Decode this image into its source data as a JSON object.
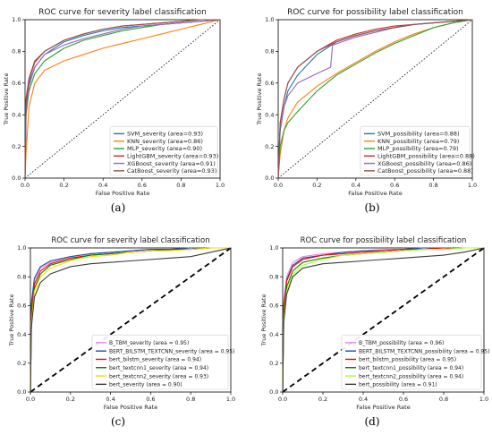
{
  "figure": {
    "captions": [
      "(a)",
      "(b)",
      "(c)",
      "(d)"
    ]
  },
  "chart_data": [
    {
      "type": "line",
      "title": "ROC curve  for severity label classification",
      "xlabel": "False Positive Rate",
      "ylabel": "True Positive Rate",
      "xlim": [
        0,
        1
      ],
      "ylim": [
        0,
        1
      ],
      "x_ticks": [
        "0.0",
        "0.2",
        "0.4",
        "0.6",
        "0.8",
        "1.0"
      ],
      "y_ticks": [
        "0.0",
        "0.2",
        "0.4",
        "0.6",
        "0.8",
        "1.0"
      ],
      "grid": false,
      "legend_position": "bottom-right",
      "diagonal": {
        "style": "dotted",
        "color": "#000000"
      },
      "series": [
        {
          "name": "SVM_severity (area=0.93)",
          "color": "#1f77b4",
          "x": [
            0,
            0.005,
            0.02,
            0.05,
            0.1,
            0.2,
            0.3,
            0.4,
            0.5,
            0.6,
            0.7,
            0.8,
            0.9,
            1.0
          ],
          "y": [
            0,
            0.45,
            0.6,
            0.7,
            0.78,
            0.86,
            0.9,
            0.93,
            0.95,
            0.96,
            0.97,
            0.98,
            0.99,
            1.0
          ]
        },
        {
          "name": "KNN_severity (area=0.86)",
          "color": "#ff7f0e",
          "x": [
            0,
            0.005,
            0.02,
            0.05,
            0.1,
            0.2,
            0.3,
            0.4,
            0.5,
            0.6,
            0.7,
            0.8,
            0.9,
            1.0
          ],
          "y": [
            0,
            0.15,
            0.45,
            0.6,
            0.68,
            0.74,
            0.78,
            0.82,
            0.85,
            0.88,
            0.91,
            0.94,
            0.97,
            1.0
          ]
        },
        {
          "name": "MLP_severity (area=0.90)",
          "color": "#2ca02c",
          "x": [
            0,
            0.005,
            0.02,
            0.05,
            0.1,
            0.2,
            0.3,
            0.4,
            0.5,
            0.6,
            0.7,
            0.8,
            0.9,
            1.0
          ],
          "y": [
            0,
            0.4,
            0.55,
            0.66,
            0.74,
            0.82,
            0.87,
            0.9,
            0.93,
            0.95,
            0.97,
            0.98,
            0.99,
            1.0
          ]
        },
        {
          "name": "LightGBM_severity (area=0.93)",
          "color": "#d62728",
          "x": [
            0,
            0.005,
            0.02,
            0.05,
            0.1,
            0.2,
            0.3,
            0.4,
            0.5,
            0.6,
            0.7,
            0.8,
            0.9,
            1.0
          ],
          "y": [
            0,
            0.5,
            0.63,
            0.74,
            0.8,
            0.87,
            0.91,
            0.94,
            0.96,
            0.97,
            0.98,
            0.99,
            1.0,
            1.0
          ]
        },
        {
          "name": "XGBoost_severity (area=0.91)",
          "color": "#9467bd",
          "x": [
            0,
            0.005,
            0.02,
            0.05,
            0.1,
            0.2,
            0.3,
            0.4,
            0.5,
            0.6,
            0.7,
            0.8,
            0.9,
            1.0
          ],
          "y": [
            0,
            0.42,
            0.58,
            0.7,
            0.78,
            0.84,
            0.88,
            0.91,
            0.94,
            0.96,
            0.97,
            0.98,
            0.99,
            1.0
          ]
        },
        {
          "name": "CatBoost_severity (area=0.93)",
          "color": "#8c564b",
          "x": [
            0,
            0.005,
            0.02,
            0.05,
            0.1,
            0.2,
            0.3,
            0.4,
            0.5,
            0.6,
            0.7,
            0.8,
            0.9,
            1.0
          ],
          "y": [
            0,
            0.48,
            0.62,
            0.73,
            0.8,
            0.87,
            0.91,
            0.94,
            0.96,
            0.97,
            0.98,
            0.99,
            1.0,
            1.0
          ]
        }
      ]
    },
    {
      "type": "line",
      "title": "ROC curve  for possibility label classification",
      "xlabel": "False Positive Rate",
      "ylabel": "True Positive Rate",
      "xlim": [
        0,
        1
      ],
      "ylim": [
        0,
        1
      ],
      "x_ticks": [
        "0.0",
        "0.2",
        "0.4",
        "0.6",
        "0.8",
        "1.0"
      ],
      "y_ticks": [
        "0.0",
        "0.2",
        "0.4",
        "0.6",
        "0.8",
        "1.0"
      ],
      "grid": false,
      "legend_position": "bottom-right",
      "diagonal": {
        "style": "dotted",
        "color": "#000000"
      },
      "series": [
        {
          "name": "SVM_possibility (area=0.88)",
          "color": "#1f77b4",
          "x": [
            0,
            0.01,
            0.03,
            0.05,
            0.1,
            0.2,
            0.3,
            0.4,
            0.5,
            0.6,
            0.7,
            0.8,
            0.9,
            1.0
          ],
          "y": [
            0,
            0.3,
            0.45,
            0.55,
            0.65,
            0.78,
            0.86,
            0.9,
            0.93,
            0.95,
            0.97,
            0.98,
            0.99,
            1.0
          ]
        },
        {
          "name": "KNN_possibility (area=0.79)",
          "color": "#ff7f0e",
          "x": [
            0,
            0.01,
            0.03,
            0.05,
            0.1,
            0.2,
            0.3,
            0.4,
            0.5,
            0.6,
            0.7,
            0.8,
            0.9,
            1.0
          ],
          "y": [
            0,
            0.15,
            0.3,
            0.38,
            0.48,
            0.58,
            0.66,
            0.73,
            0.8,
            0.86,
            0.91,
            0.95,
            0.98,
            1.0
          ]
        },
        {
          "name": "MLP_possibility (area=0.79)",
          "color": "#2ca02c",
          "x": [
            0,
            0.01,
            0.03,
            0.05,
            0.1,
            0.2,
            0.3,
            0.4,
            0.5,
            0.6,
            0.7,
            0.8,
            0.9,
            1.0
          ],
          "y": [
            0,
            0.2,
            0.3,
            0.35,
            0.42,
            0.55,
            0.65,
            0.72,
            0.79,
            0.85,
            0.9,
            0.95,
            0.98,
            1.0
          ]
        },
        {
          "name": "LightGBM_possibility (area=0.88)",
          "color": "#d62728",
          "x": [
            0,
            0.01,
            0.03,
            0.05,
            0.1,
            0.2,
            0.3,
            0.4,
            0.5,
            0.6,
            0.7,
            0.8,
            0.9,
            1.0
          ],
          "y": [
            0,
            0.35,
            0.5,
            0.6,
            0.7,
            0.8,
            0.87,
            0.91,
            0.94,
            0.96,
            0.97,
            0.98,
            0.99,
            1.0
          ]
        },
        {
          "name": "XGBoost_possibility (area=0.86)",
          "color": "#9467bd",
          "x": [
            0,
            0.01,
            0.03,
            0.05,
            0.1,
            0.2,
            0.27,
            0.28,
            0.4,
            0.5,
            0.6,
            0.7,
            0.8,
            0.9,
            1.0
          ],
          "y": [
            0,
            0.3,
            0.45,
            0.52,
            0.6,
            0.66,
            0.7,
            0.84,
            0.89,
            0.92,
            0.95,
            0.97,
            0.98,
            0.99,
            1.0
          ]
        },
        {
          "name": "CatBoost_possibility (area=0.88)",
          "color": "#8c564b",
          "x": [
            0,
            0.01,
            0.03,
            0.05,
            0.1,
            0.2,
            0.3,
            0.4,
            0.5,
            0.6,
            0.7,
            0.8,
            0.9,
            1.0
          ],
          "y": [
            0,
            0.34,
            0.5,
            0.6,
            0.7,
            0.8,
            0.86,
            0.9,
            0.93,
            0.95,
            0.97,
            0.98,
            0.99,
            1.0
          ]
        }
      ]
    },
    {
      "type": "line",
      "title": "ROC curve for severity label classification",
      "xlabel": "False Positive Rate",
      "ylabel": "True Positive Rate",
      "xlim": [
        0,
        1
      ],
      "ylim": [
        0,
        1
      ],
      "x_ticks": [
        "0.0",
        "0.2",
        "0.4",
        "0.6",
        "0.8",
        "1.0"
      ],
      "y_ticks": [
        "0.0",
        "0.2",
        "0.4",
        "0.6",
        "0.8",
        "1.0"
      ],
      "grid": false,
      "legend_position": "bottom-right",
      "diagonal": {
        "style": "dashed",
        "color": "#000000"
      },
      "series": [
        {
          "name": "B_TBM_severity (area = 0.95)",
          "color": "#ee82ee",
          "x": [
            0,
            0.005,
            0.02,
            0.05,
            0.1,
            0.2,
            0.3,
            0.4,
            0.5,
            0.6,
            0.7,
            0.8,
            0.9,
            1.0
          ],
          "y": [
            0,
            0.6,
            0.78,
            0.86,
            0.9,
            0.94,
            0.96,
            0.97,
            0.98,
            0.99,
            0.99,
            1.0,
            1.0,
            1.0
          ]
        },
        {
          "name": "BERT_BILSTM_TEXTCNN_severity (area = 0.95)",
          "color": "#1f4e9e",
          "x": [
            0,
            0.005,
            0.02,
            0.05,
            0.1,
            0.2,
            0.3,
            0.4,
            0.5,
            0.6,
            0.7,
            0.8,
            0.9,
            1.0
          ],
          "y": [
            0,
            0.62,
            0.79,
            0.87,
            0.91,
            0.94,
            0.96,
            0.97,
            0.98,
            0.99,
            0.99,
            1.0,
            1.0,
            1.0
          ]
        },
        {
          "name": "bert_bilstm_severity (area = 0.94)",
          "color": "#ff0000",
          "x": [
            0,
            0.005,
            0.02,
            0.05,
            0.1,
            0.2,
            0.3,
            0.4,
            0.5,
            0.6,
            0.7,
            0.8,
            0.9,
            1.0
          ],
          "y": [
            0,
            0.55,
            0.75,
            0.84,
            0.89,
            0.93,
            0.95,
            0.96,
            0.97,
            0.98,
            0.99,
            0.99,
            1.0,
            1.0
          ]
        },
        {
          "name": "bert_textcnn1_severity (area = 0.94)",
          "color": "#008000",
          "x": [
            0,
            0.005,
            0.02,
            0.05,
            0.1,
            0.2,
            0.3,
            0.4,
            0.5,
            0.6,
            0.7,
            0.8,
            0.9,
            1.0
          ],
          "y": [
            0,
            0.5,
            0.72,
            0.82,
            0.88,
            0.92,
            0.95,
            0.96,
            0.97,
            0.98,
            0.99,
            0.99,
            1.0,
            1.0
          ]
        },
        {
          "name": "bert_textcnn2_severity (area = 0.93)",
          "color": "#ffd700",
          "x": [
            0,
            0.005,
            0.02,
            0.05,
            0.1,
            0.2,
            0.3,
            0.4,
            0.5,
            0.6,
            0.7,
            0.8,
            0.9,
            1.0
          ],
          "y": [
            0,
            0.48,
            0.7,
            0.8,
            0.86,
            0.91,
            0.94,
            0.95,
            0.97,
            0.98,
            0.98,
            0.99,
            1.0,
            1.0
          ]
        },
        {
          "name": "bert_severity (area = 0.90)",
          "color": "#3b3b3b",
          "x": [
            0,
            0.005,
            0.02,
            0.05,
            0.1,
            0.2,
            0.3,
            0.4,
            0.5,
            0.6,
            0.7,
            0.8,
            0.9,
            1.0
          ],
          "y": [
            0,
            0.45,
            0.66,
            0.76,
            0.82,
            0.87,
            0.89,
            0.9,
            0.91,
            0.92,
            0.93,
            0.94,
            0.97,
            1.0
          ]
        }
      ]
    },
    {
      "type": "line",
      "title": "ROC curve for possibility label classification",
      "xlabel": "False Positive Rate",
      "ylabel": "True Positive Rate",
      "xlim": [
        0,
        1
      ],
      "ylim": [
        0,
        1
      ],
      "x_ticks": [
        "0.0",
        "0.2",
        "0.4",
        "0.6",
        "0.8",
        "1.0"
      ],
      "y_ticks": [
        "0.0",
        "0.2",
        "0.4",
        "0.6",
        "0.8",
        "1.0"
      ],
      "grid": false,
      "legend_position": "bottom-right",
      "diagonal": {
        "style": "dashed",
        "color": "#000000"
      },
      "series": [
        {
          "name": "B_TBM_possibility (area = 0.96)",
          "color": "#ee82ee",
          "x": [
            0,
            0.005,
            0.02,
            0.05,
            0.1,
            0.2,
            0.3,
            0.4,
            0.5,
            0.6,
            0.7,
            0.8,
            0.9,
            1.0
          ],
          "y": [
            0,
            0.62,
            0.8,
            0.9,
            0.94,
            0.96,
            0.97,
            0.98,
            0.99,
            0.99,
            1.0,
            1.0,
            1.0,
            1.0
          ]
        },
        {
          "name": "BERT_BILSTM_TEXTCNN_possibility (area = 0.95)",
          "color": "#1f4e9e",
          "x": [
            0,
            0.005,
            0.02,
            0.05,
            0.1,
            0.2,
            0.3,
            0.4,
            0.5,
            0.6,
            0.7,
            0.8,
            0.9,
            1.0
          ],
          "y": [
            0,
            0.6,
            0.78,
            0.88,
            0.93,
            0.95,
            0.97,
            0.98,
            0.98,
            0.99,
            1.0,
            1.0,
            1.0,
            1.0
          ]
        },
        {
          "name": "bert_bilstm_possibility (area = 0.95)",
          "color": "#ff0000",
          "x": [
            0,
            0.005,
            0.02,
            0.05,
            0.1,
            0.2,
            0.3,
            0.4,
            0.5,
            0.6,
            0.7,
            0.8,
            0.9,
            1.0
          ],
          "y": [
            0,
            0.58,
            0.77,
            0.87,
            0.92,
            0.95,
            0.96,
            0.97,
            0.98,
            0.99,
            0.99,
            1.0,
            1.0,
            1.0
          ]
        },
        {
          "name": "bert_textcnn1_possibility (area = 0.94)",
          "color": "#008000",
          "x": [
            0,
            0.005,
            0.02,
            0.05,
            0.1,
            0.2,
            0.3,
            0.4,
            0.5,
            0.6,
            0.7,
            0.8,
            0.9,
            1.0
          ],
          "y": [
            0,
            0.52,
            0.73,
            0.84,
            0.9,
            0.93,
            0.95,
            0.96,
            0.97,
            0.98,
            0.99,
            0.99,
            1.0,
            1.0
          ]
        },
        {
          "name": "bert_textcnn2_possibility (area = 0.94)",
          "color": "#adff2f",
          "x": [
            0,
            0.005,
            0.02,
            0.05,
            0.1,
            0.2,
            0.3,
            0.4,
            0.5,
            0.6,
            0.7,
            0.8,
            0.9,
            1.0
          ],
          "y": [
            0,
            0.5,
            0.7,
            0.82,
            0.88,
            0.92,
            0.95,
            0.96,
            0.97,
            0.98,
            0.99,
            0.99,
            1.0,
            1.0
          ]
        },
        {
          "name": "bert_possibility (area = 0.91)",
          "color": "#3b3b3b",
          "x": [
            0,
            0.005,
            0.02,
            0.05,
            0.1,
            0.2,
            0.3,
            0.4,
            0.5,
            0.6,
            0.7,
            0.8,
            0.9,
            1.0
          ],
          "y": [
            0,
            0.48,
            0.68,
            0.8,
            0.86,
            0.89,
            0.9,
            0.91,
            0.92,
            0.93,
            0.94,
            0.95,
            0.97,
            1.0
          ]
        }
      ]
    }
  ]
}
